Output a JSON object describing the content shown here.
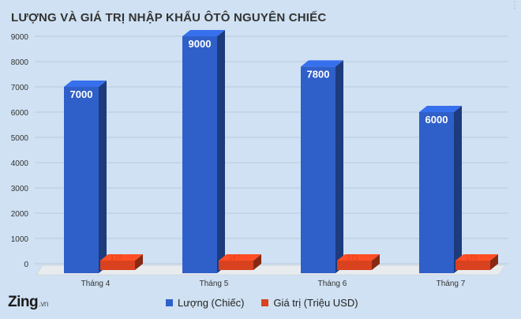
{
  "title": "LƯỢNG VÀ GIÁ TRỊ NHẬP KHẨU ÔTÔ NGUYÊN CHIẾC",
  "brand": {
    "name": "Zing",
    "suffix": ".vn"
  },
  "colors": {
    "series1": "#2f5fc9",
    "series2": "#d9421f",
    "background": "#cfe1f2"
  },
  "chart_data": {
    "type": "bar",
    "categories": [
      "Tháng 4",
      "Tháng 5",
      "Tháng 6",
      "Tháng 7"
    ],
    "series": [
      {
        "name": "Lượng (Chiếc)",
        "values": [
          7000,
          9000,
          7800,
          6000
        ],
        "color": "#2f5fc9"
      },
      {
        "name": "Giá trị (Triệu USD)",
        "values": [
          170,
          187,
          171,
          170
        ],
        "color": "#d9421f"
      }
    ],
    "ylim": [
      0,
      9000
    ],
    "yticks": [
      0,
      1000,
      2000,
      3000,
      4000,
      5000,
      6000,
      7000,
      8000,
      9000
    ],
    "grid": true,
    "legend": "bottom",
    "three_d": true
  }
}
